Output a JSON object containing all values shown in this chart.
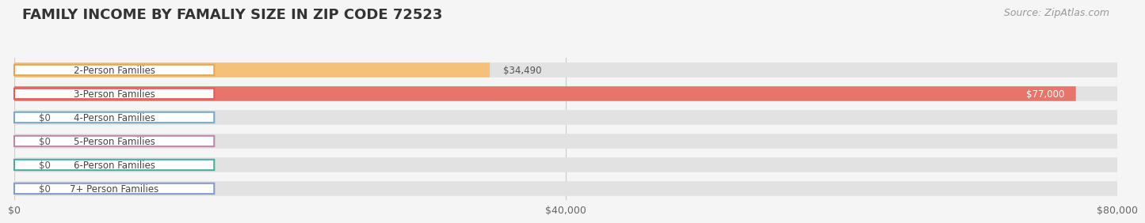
{
  "title": "FAMILY INCOME BY FAMALIY SIZE IN ZIP CODE 72523",
  "source": "Source: ZipAtlas.com",
  "categories": [
    "2-Person Families",
    "3-Person Families",
    "4-Person Families",
    "5-Person Families",
    "6-Person Families",
    "7+ Person Families"
  ],
  "values": [
    34490,
    77000,
    0,
    0,
    0,
    0
  ],
  "bar_colors": [
    "#f5c07a",
    "#e8756a",
    "#9bbfdd",
    "#cc99bb",
    "#5bbfb0",
    "#aab4e0"
  ],
  "label_colors": [
    "#e8a84a",
    "#e06055",
    "#7aaac8",
    "#bb88aa",
    "#44b0a0",
    "#8899cc"
  ],
  "value_labels": [
    "$34,490",
    "$77,000",
    "$0",
    "$0",
    "$0",
    "$0"
  ],
  "xlim": [
    0,
    80000
  ],
  "xticks": [
    0,
    40000,
    80000
  ],
  "xticklabels": [
    "$0",
    "$40,000",
    "$80,000"
  ],
  "background_color": "#f5f5f5",
  "bar_bg_color": "#e2e2e2",
  "bar_height": 0.62,
  "title_fontsize": 13,
  "label_fontsize": 8.5,
  "value_fontsize": 8.5,
  "source_fontsize": 9
}
